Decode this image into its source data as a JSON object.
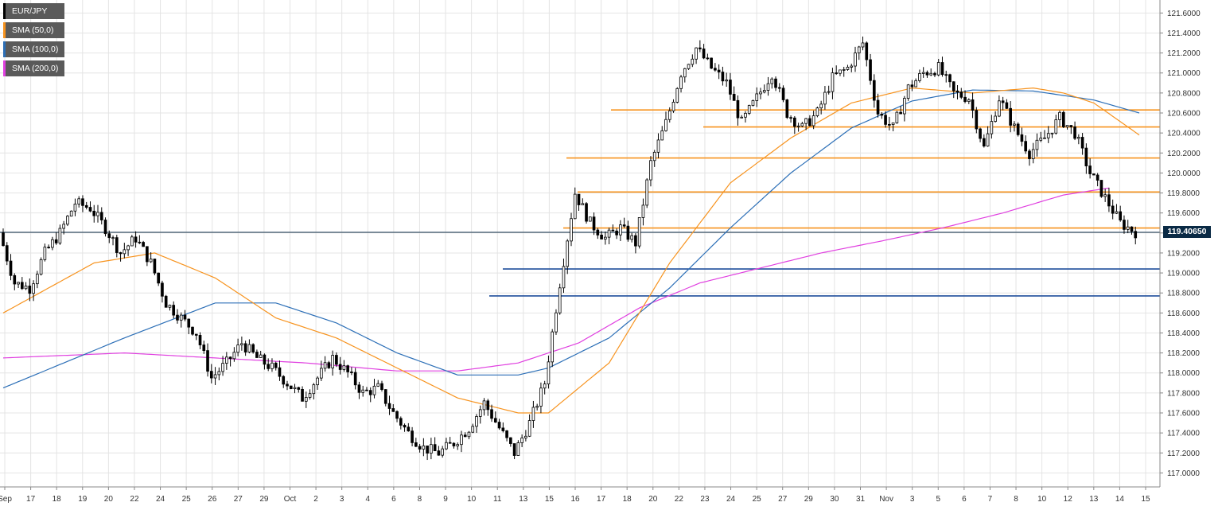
{
  "colors": {
    "sma50": "#f7931e",
    "sma100": "#2c6fb7",
    "sma200": "#e040e0",
    "level_orange": "#f7931e",
    "level_blue": "#1f4e9c",
    "last_line": "#0a2a45",
    "candle": "#000000",
    "grid": "#e4e4e4"
  },
  "legend": [
    {
      "label": "EUR/JPY",
      "swatch": "#000000"
    },
    {
      "label": "SMA (50,0)",
      "swatch": "#f7931e"
    },
    {
      "label": "SMA (100,0)",
      "swatch": "#2c6fb7"
    },
    {
      "label": "SMA (200,0)",
      "swatch": "#e040e0"
    }
  ],
  "last_price_label": "119.40650",
  "chart_data": {
    "type": "candlestick",
    "title": "EUR/JPY",
    "xlabel": "",
    "ylabel": "",
    "ylim": [
      116.86,
      121.73
    ],
    "y_ticks": [
      "121.6000",
      "121.4000",
      "121.2000",
      "121.0000",
      "120.8000",
      "120.6000",
      "120.4000",
      "120.2000",
      "120.0000",
      "119.8000",
      "119.6000",
      "119.4000",
      "119.2000",
      "119.0000",
      "118.8000",
      "118.6000",
      "118.4000",
      "118.2000",
      "118.0000",
      "117.8000",
      "117.6000",
      "117.4000",
      "117.2000",
      "117.0000"
    ],
    "x_ticks": [
      "Sep",
      "17",
      "18",
      "19",
      "20",
      "22",
      "24",
      "25",
      "26",
      "27",
      "29",
      "Oct",
      "2",
      "3",
      "4",
      "6",
      "8",
      "9",
      "10",
      "11",
      "13",
      "15",
      "16",
      "17",
      "18",
      "20",
      "22",
      "23",
      "24",
      "25",
      "27",
      "29",
      "30",
      "31",
      "Nov",
      "3",
      "5",
      "6",
      "7",
      "8",
      "10",
      "12",
      "13",
      "14",
      "15"
    ],
    "last_price": 119.4065,
    "horizontal_levels": [
      {
        "value": 120.63,
        "color": "orange"
      },
      {
        "value": 120.46,
        "color": "orange"
      },
      {
        "value": 120.15,
        "color": "orange"
      },
      {
        "value": 119.81,
        "color": "orange"
      },
      {
        "value": 119.45,
        "color": "orange"
      },
      {
        "value": 119.04,
        "color": "blue"
      },
      {
        "value": 118.77,
        "color": "blue"
      }
    ],
    "price_path": [
      [
        0,
        119.4
      ],
      [
        1,
        118.9
      ],
      [
        2,
        118.85
      ],
      [
        3,
        119.2
      ],
      [
        4,
        119.4
      ],
      [
        5,
        119.7
      ],
      [
        6,
        119.65
      ],
      [
        7,
        119.45
      ],
      [
        8,
        119.2
      ],
      [
        9,
        119.35
      ],
      [
        10,
        119.1
      ],
      [
        11,
        118.7
      ],
      [
        12,
        118.55
      ],
      [
        13,
        118.4
      ],
      [
        14,
        117.95
      ],
      [
        15,
        118.1
      ],
      [
        16,
        118.3
      ],
      [
        17,
        118.15
      ],
      [
        18,
        118.05
      ],
      [
        19,
        117.9
      ],
      [
        20,
        117.75
      ],
      [
        21,
        117.95
      ],
      [
        22,
        118.15
      ],
      [
        23,
        118.0
      ],
      [
        24,
        117.8
      ],
      [
        25,
        117.85
      ],
      [
        26,
        117.6
      ],
      [
        27,
        117.4
      ],
      [
        28,
        117.25
      ],
      [
        29,
        117.2
      ],
      [
        30,
        117.3
      ],
      [
        31,
        117.45
      ],
      [
        32,
        117.7
      ],
      [
        33,
        117.45
      ],
      [
        34,
        117.2
      ],
      [
        35,
        117.5
      ],
      [
        36,
        117.9
      ],
      [
        37,
        118.9
      ],
      [
        38,
        119.8
      ],
      [
        39,
        119.5
      ],
      [
        40,
        119.35
      ],
      [
        41,
        119.45
      ],
      [
        42,
        119.3
      ],
      [
        43,
        120.1
      ],
      [
        44,
        120.5
      ],
      [
        45,
        121.0
      ],
      [
        46,
        121.25
      ],
      [
        47,
        121.05
      ],
      [
        48,
        120.9
      ],
      [
        49,
        120.5
      ],
      [
        50,
        120.75
      ],
      [
        51,
        121.0
      ],
      [
        52,
        120.6
      ],
      [
        53,
        120.45
      ],
      [
        54,
        120.6
      ],
      [
        55,
        120.95
      ],
      [
        56,
        121.05
      ],
      [
        57,
        121.3
      ],
      [
        58,
        120.6
      ],
      [
        59,
        120.45
      ],
      [
        60,
        120.85
      ],
      [
        61,
        121.0
      ],
      [
        62,
        121.05
      ],
      [
        63,
        120.8
      ],
      [
        64,
        120.75
      ],
      [
        65,
        120.25
      ],
      [
        66,
        120.75
      ],
      [
        67,
        120.45
      ],
      [
        68,
        120.2
      ],
      [
        69,
        120.35
      ],
      [
        70,
        120.55
      ],
      [
        71,
        120.4
      ],
      [
        72,
        120.0
      ],
      [
        73,
        119.75
      ],
      [
        74,
        119.5
      ],
      [
        75,
        119.41
      ]
    ],
    "sma50_path": [
      [
        0,
        118.6
      ],
      [
        6,
        119.1
      ],
      [
        10,
        119.2
      ],
      [
        14,
        118.95
      ],
      [
        18,
        118.55
      ],
      [
        22,
        118.35
      ],
      [
        26,
        118.05
      ],
      [
        30,
        117.75
      ],
      [
        34,
        117.6
      ],
      [
        36,
        117.6
      ],
      [
        40,
        118.1
      ],
      [
        44,
        119.1
      ],
      [
        48,
        119.9
      ],
      [
        52,
        120.35
      ],
      [
        56,
        120.7
      ],
      [
        60,
        120.85
      ],
      [
        64,
        120.8
      ],
      [
        68,
        120.85
      ],
      [
        70,
        120.8
      ],
      [
        72,
        120.7
      ],
      [
        75,
        120.38
      ]
    ],
    "sma100_path": [
      [
        0,
        117.85
      ],
      [
        8,
        118.35
      ],
      [
        14,
        118.7
      ],
      [
        18,
        118.7
      ],
      [
        22,
        118.5
      ],
      [
        26,
        118.2
      ],
      [
        30,
        117.98
      ],
      [
        34,
        117.98
      ],
      [
        36,
        118.05
      ],
      [
        40,
        118.35
      ],
      [
        44,
        118.85
      ],
      [
        48,
        119.45
      ],
      [
        52,
        120.0
      ],
      [
        56,
        120.45
      ],
      [
        60,
        120.72
      ],
      [
        64,
        120.83
      ],
      [
        68,
        120.82
      ],
      [
        72,
        120.73
      ],
      [
        75,
        120.6
      ]
    ],
    "sma200_path": [
      [
        0,
        118.15
      ],
      [
        8,
        118.2
      ],
      [
        14,
        118.15
      ],
      [
        20,
        118.1
      ],
      [
        26,
        118.02
      ],
      [
        30,
        118.02
      ],
      [
        34,
        118.1
      ],
      [
        38,
        118.3
      ],
      [
        42,
        118.65
      ],
      [
        46,
        118.9
      ],
      [
        50,
        119.05
      ],
      [
        54,
        119.2
      ],
      [
        58,
        119.32
      ],
      [
        62,
        119.45
      ],
      [
        66,
        119.6
      ],
      [
        70,
        119.78
      ],
      [
        73,
        119.85
      ]
    ]
  }
}
